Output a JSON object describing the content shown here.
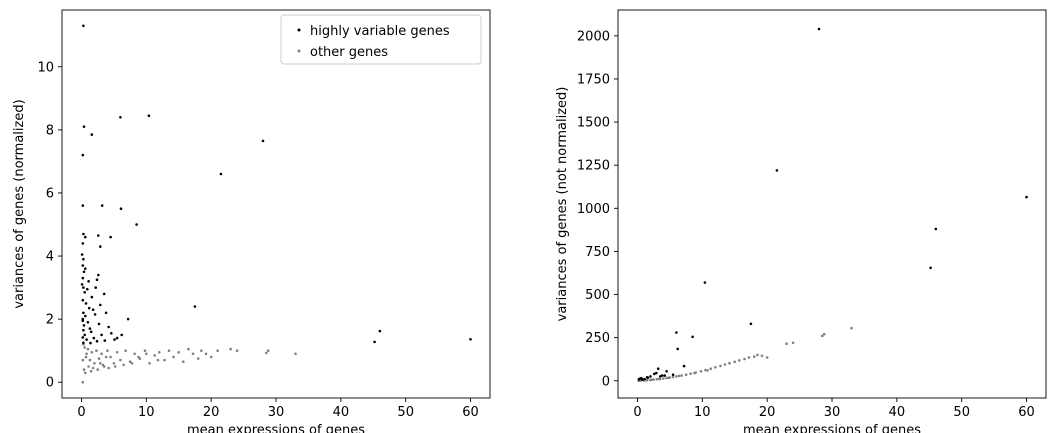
{
  "chart_data": [
    {
      "type": "scatter",
      "xlabel": "mean expressions of genes",
      "ylabel": "variances of genes (normalized)",
      "xlim": [
        -3,
        63
      ],
      "ylim": [
        -0.5,
        11.8
      ],
      "xticks": [
        0,
        10,
        20,
        30,
        40,
        50,
        60
      ],
      "yticks": [
        0,
        2,
        4,
        6,
        8,
        10
      ],
      "legend": {
        "placement": "top-right"
      },
      "series": [
        {
          "name": "highly variable genes",
          "color": "#000000",
          "points": [
            [
              0.3,
              11.3
            ],
            [
              0.4,
              8.1
            ],
            [
              1.6,
              7.85
            ],
            [
              0.2,
              7.2
            ],
            [
              6.0,
              8.4
            ],
            [
              10.4,
              8.45
            ],
            [
              28.0,
              7.65
            ],
            [
              21.5,
              6.6
            ],
            [
              0.2,
              5.6
            ],
            [
              3.2,
              5.6
            ],
            [
              6.1,
              5.5
            ],
            [
              8.5,
              5.0
            ],
            [
              0.3,
              4.7
            ],
            [
              0.6,
              4.6
            ],
            [
              2.6,
              4.65
            ],
            [
              4.5,
              4.6
            ],
            [
              2.9,
              4.3
            ],
            [
              0.2,
              4.4
            ],
            [
              0.1,
              4.05
            ],
            [
              0.3,
              3.9
            ],
            [
              0.2,
              3.7
            ],
            [
              0.4,
              3.5
            ],
            [
              2.6,
              3.4
            ],
            [
              0.2,
              3.3
            ],
            [
              1.1,
              3.2
            ],
            [
              2.4,
              3.25
            ],
            [
              0.3,
              3.0
            ],
            [
              0.5,
              2.85
            ],
            [
              3.5,
              2.8
            ],
            [
              1.6,
              2.7
            ],
            [
              0.2,
              2.6
            ],
            [
              0.7,
              2.5
            ],
            [
              2.9,
              2.45
            ],
            [
              1.2,
              2.35
            ],
            [
              17.5,
              2.4
            ],
            [
              0.3,
              2.2
            ],
            [
              3.8,
              2.2
            ],
            [
              0.6,
              2.1
            ],
            [
              2.1,
              2.15
            ],
            [
              7.2,
              2.0
            ],
            [
              0.2,
              1.95
            ],
            [
              1.0,
              1.9
            ],
            [
              0.4,
              1.8
            ],
            [
              2.7,
              1.85
            ],
            [
              4.2,
              1.75
            ],
            [
              0.3,
              1.65
            ],
            [
              1.5,
              1.6
            ],
            [
              46.0,
              1.62
            ],
            [
              0.5,
              1.5
            ],
            [
              3.1,
              1.5
            ],
            [
              4.6,
              1.55
            ],
            [
              6.2,
              1.5
            ],
            [
              0.2,
              1.42
            ],
            [
              1.9,
              1.4
            ],
            [
              0.8,
              1.35
            ],
            [
              60.0,
              1.36
            ],
            [
              2.4,
              1.3
            ],
            [
              3.6,
              1.32
            ],
            [
              5.1,
              1.35
            ],
            [
              45.2,
              1.28
            ],
            [
              0.3,
              1.25
            ],
            [
              1.4,
              1.24
            ],
            [
              2.2,
              3.0
            ],
            [
              0.9,
              2.95
            ],
            [
              1.8,
              2.3
            ],
            [
              0.1,
              3.1
            ],
            [
              0.6,
              3.6
            ],
            [
              0.2,
              2.0
            ],
            [
              1.3,
              1.7
            ],
            [
              5.5,
              1.4
            ]
          ]
        },
        {
          "name": "other genes",
          "color": "#808080",
          "points": [
            [
              0.2,
              0.0
            ],
            [
              0.3,
              1.2
            ],
            [
              0.5,
              1.1
            ],
            [
              0.8,
              0.9
            ],
            [
              1.0,
              1.05
            ],
            [
              1.3,
              0.7
            ],
            [
              1.6,
              0.95
            ],
            [
              2.0,
              0.6
            ],
            [
              2.3,
              1.0
            ],
            [
              2.7,
              0.75
            ],
            [
              3.1,
              0.9
            ],
            [
              3.5,
              0.5
            ],
            [
              4.0,
              1.0
            ],
            [
              4.5,
              0.8
            ],
            [
              5.0,
              0.6
            ],
            [
              5.5,
              0.95
            ],
            [
              6.0,
              0.7
            ],
            [
              6.8,
              1.0
            ],
            [
              7.5,
              0.65
            ],
            [
              8.2,
              0.9
            ],
            [
              9.0,
              0.75
            ],
            [
              9.8,
              1.0
            ],
            [
              10.5,
              0.6
            ],
            [
              11.3,
              0.85
            ],
            [
              12.0,
              0.95
            ],
            [
              12.8,
              0.7
            ],
            [
              13.5,
              1.0
            ],
            [
              14.2,
              0.8
            ],
            [
              15.0,
              0.95
            ],
            [
              15.7,
              0.65
            ],
            [
              16.5,
              1.05
            ],
            [
              17.2,
              0.9
            ],
            [
              18.0,
              0.75
            ],
            [
              18.5,
              1.0
            ],
            [
              19.2,
              0.9
            ],
            [
              20.0,
              0.8
            ],
            [
              21.0,
              1.0
            ],
            [
              23.0,
              1.05
            ],
            [
              24.0,
              1.0
            ],
            [
              28.8,
              1.0
            ],
            [
              28.5,
              0.93
            ],
            [
              33.0,
              0.9
            ],
            [
              0.4,
              0.4
            ],
            [
              0.6,
              0.3
            ],
            [
              1.1,
              0.5
            ],
            [
              1.8,
              0.45
            ],
            [
              2.5,
              0.4
            ],
            [
              3.3,
              0.55
            ],
            [
              4.2,
              0.45
            ],
            [
              5.2,
              0.5
            ],
            [
              6.5,
              0.55
            ],
            [
              7.8,
              0.6
            ],
            [
              0.2,
              0.7
            ],
            [
              0.7,
              0.8
            ],
            [
              1.5,
              0.35
            ],
            [
              2.9,
              0.6
            ],
            [
              3.8,
              0.8
            ],
            [
              8.8,
              0.8
            ],
            [
              10.0,
              0.9
            ],
            [
              11.8,
              0.7
            ]
          ]
        }
      ]
    },
    {
      "type": "scatter",
      "xlabel": "mean expressions of genes",
      "ylabel": "variances of genes (not normalized)",
      "xlim": [
        -3,
        63
      ],
      "ylim": [
        -100,
        2150
      ],
      "xticks": [
        0,
        10,
        20,
        30,
        40,
        50,
        60
      ],
      "yticks": [
        0,
        250,
        500,
        750,
        1000,
        1250,
        1500,
        1750,
        2000
      ],
      "series": [
        {
          "color": "#000000",
          "points": [
            [
              28.0,
              2040
            ],
            [
              21.5,
              1220
            ],
            [
              60.0,
              1065
            ],
            [
              46.0,
              880
            ],
            [
              45.2,
              655
            ],
            [
              10.4,
              570
            ],
            [
              17.5,
              330
            ],
            [
              6.0,
              280
            ],
            [
              8.5,
              255
            ],
            [
              6.2,
              185
            ],
            [
              7.2,
              85
            ],
            [
              3.2,
              70
            ],
            [
              4.5,
              55
            ],
            [
              2.6,
              40
            ],
            [
              5.5,
              35
            ],
            [
              3.8,
              30
            ],
            [
              2.0,
              25
            ],
            [
              1.5,
              20
            ],
            [
              0.4,
              12
            ],
            [
              0.3,
              10
            ],
            [
              0.2,
              8
            ],
            [
              0.6,
              15
            ],
            [
              1.1,
              10
            ],
            [
              2.9,
              45
            ],
            [
              4.2,
              30
            ],
            [
              1.6,
              18
            ],
            [
              0.8,
              6
            ],
            [
              3.5,
              25
            ]
          ]
        },
        {
          "color": "#808080",
          "points": [
            [
              0.2,
              0
            ],
            [
              0.5,
              1
            ],
            [
              1.0,
              2
            ],
            [
              1.5,
              3
            ],
            [
              2.0,
              5
            ],
            [
              2.5,
              7
            ],
            [
              3.0,
              9
            ],
            [
              3.5,
              11
            ],
            [
              4.0,
              13
            ],
            [
              4.5,
              16
            ],
            [
              5.0,
              19
            ],
            [
              5.5,
              22
            ],
            [
              6.0,
              25
            ],
            [
              6.8,
              30
            ],
            [
              7.5,
              35
            ],
            [
              8.2,
              41
            ],
            [
              9.0,
              48
            ],
            [
              9.8,
              55
            ],
            [
              10.5,
              62
            ],
            [
              11.3,
              70
            ],
            [
              12.0,
              78
            ],
            [
              12.8,
              86
            ],
            [
              13.5,
              94
            ],
            [
              14.2,
              102
            ],
            [
              15.0,
              110
            ],
            [
              15.7,
              118
            ],
            [
              16.5,
              126
            ],
            [
              17.2,
              135
            ],
            [
              18.0,
              140
            ],
            [
              18.5,
              150
            ],
            [
              19.2,
              145
            ],
            [
              20.0,
              135
            ],
            [
              23.0,
              215
            ],
            [
              24.0,
              220
            ],
            [
              28.5,
              260
            ],
            [
              28.8,
              270
            ],
            [
              33.0,
              305
            ],
            [
              1.2,
              4
            ],
            [
              2.2,
              6
            ],
            [
              3.3,
              10
            ],
            [
              4.8,
              18
            ],
            [
              6.4,
              28
            ],
            [
              8.8,
              45
            ],
            [
              10.8,
              60
            ]
          ]
        }
      ]
    }
  ]
}
